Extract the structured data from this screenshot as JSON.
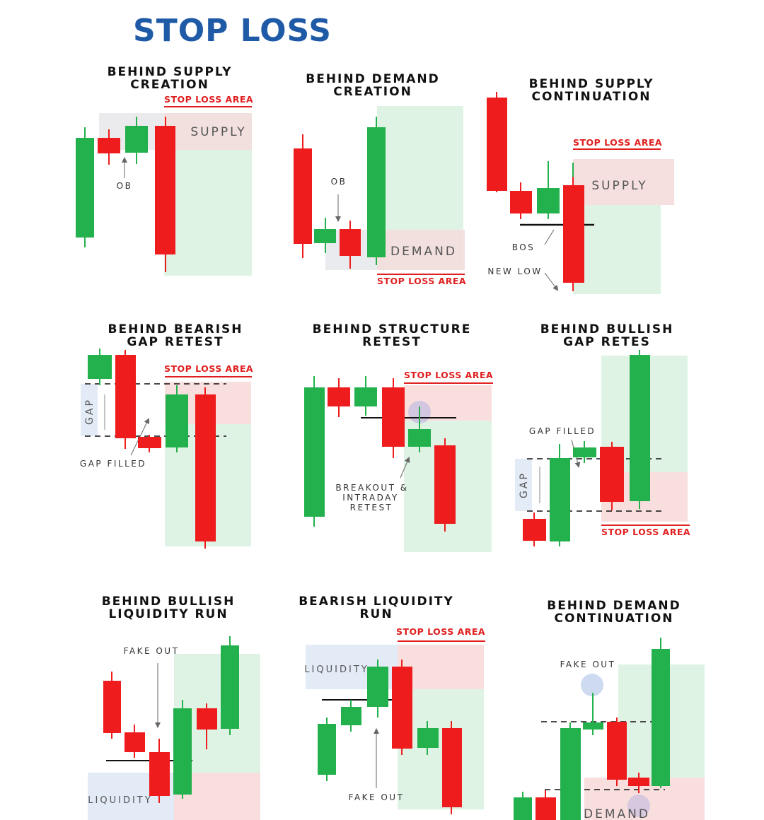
{
  "page_title": "STOP LOSS",
  "colors": {
    "title": "#1f5aa6",
    "bull": "#22b14c",
    "bear": "#ee1c1c",
    "stop_loss_text": "#e02020",
    "green_zone": "#dff3e4",
    "red_zone": "#f9dede",
    "blue_zone": "#e3ebf7",
    "fakeout_dot": "#c9d6ee"
  },
  "stop_loss_label": "STOP LOSS AREA",
  "panels": [
    {
      "id": "behind-supply-creation",
      "title": [
        "BEHIND SUPPLY",
        "CREATION"
      ],
      "zone_label": "SUPPLY",
      "annotations": [
        "OB"
      ],
      "candles": [
        "bull",
        "bear",
        "bull",
        "bear"
      ]
    },
    {
      "id": "behind-demand-creation",
      "title": [
        "BEHIND DEMAND",
        "CREATION"
      ],
      "zone_label": "DEMAND",
      "annotations": [
        "OB"
      ],
      "candles": [
        "bear",
        "bull",
        "bear",
        "bull"
      ]
    },
    {
      "id": "behind-supply-continuation",
      "title": [
        "BEHIND SUPPLY",
        "CONTINUATION"
      ],
      "zone_label": "SUPPLY",
      "annotations": [
        "BOS",
        "NEW LOW"
      ],
      "candles": [
        "bear",
        "bear",
        "bull",
        "bull",
        "bear"
      ]
    },
    {
      "id": "behind-bearish-gap-retest",
      "title": [
        "BEHIND BEARISH",
        "GAP RETEST"
      ],
      "zone_label": "GAP",
      "annotations": [
        "GAP FILLED"
      ],
      "candles": [
        "bull",
        "bear",
        "bear",
        "bull",
        "bear"
      ]
    },
    {
      "id": "behind-structure-retest",
      "title": [
        "BEHIND STRUCTURE",
        "RETEST"
      ],
      "zone_label": "",
      "annotations": [
        "BREAKOUT &",
        "INTRADAY",
        "RETEST"
      ],
      "candles": [
        "bull",
        "bear",
        "bull",
        "bear",
        "bull",
        "bear"
      ]
    },
    {
      "id": "behind-bullish-gap-retes",
      "title": [
        "BEHIND BULLISH",
        "GAP RETES"
      ],
      "zone_label": "GAP",
      "annotations": [
        "GAP FILLED"
      ],
      "candles": [
        "bear",
        "bull",
        "bull",
        "bear",
        "bull"
      ]
    },
    {
      "id": "behind-bullish-liquidity-run",
      "title": [
        "BEHIND BULLISH",
        "LIQUIDITY RUN"
      ],
      "zone_label": "LIQUIDITY",
      "annotations": [
        "FAKE OUT"
      ],
      "candles": [
        "bear",
        "bear",
        "bear",
        "bull",
        "bear",
        "bull"
      ]
    },
    {
      "id": "bearish-liquidity-run",
      "title": [
        "BEARISH LIQUIDITY",
        "RUN"
      ],
      "zone_label": "LIQUIDITY",
      "annotations": [
        "FAKE OUT"
      ],
      "candles": [
        "bull",
        "bull",
        "bull",
        "bear",
        "bull",
        "bear"
      ]
    },
    {
      "id": "behind-demand-continuation",
      "title": [
        "BEHIND DEMAND",
        "CONTINUATION"
      ],
      "zone_label": "DEMAND",
      "annotations": [
        "FAKE OUT"
      ],
      "candles": [
        "bull",
        "bear",
        "bull",
        "bull",
        "bear",
        "bear",
        "bull"
      ]
    }
  ]
}
